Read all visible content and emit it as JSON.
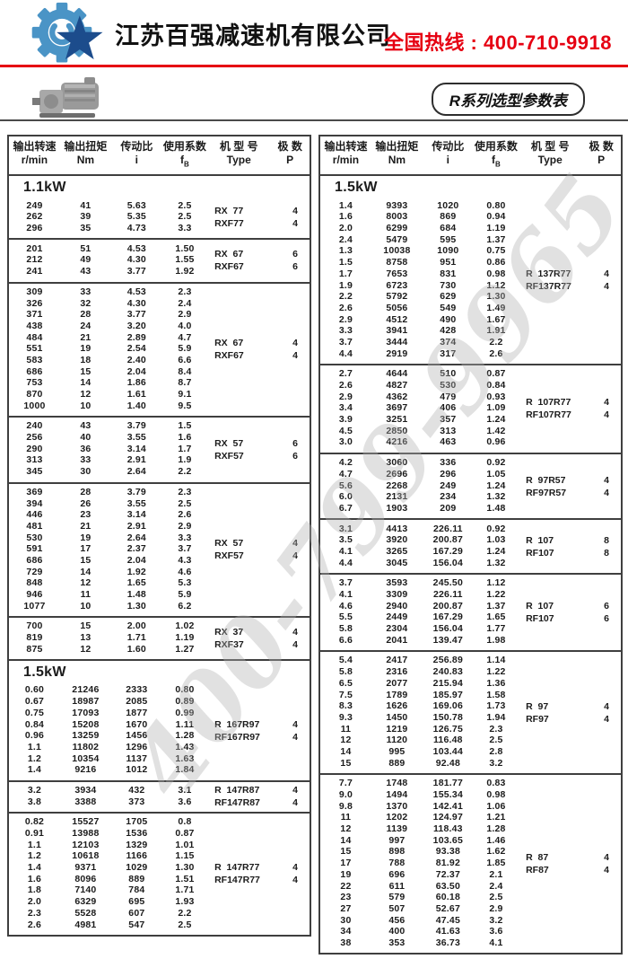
{
  "page": {
    "company_name": "江苏百强减速机有限公司",
    "hotline": "全国热线 : 400-710-9918",
    "series_badge": "R系列选型参数表",
    "watermark": "400-799-9965"
  },
  "colors": {
    "accent_red": "#e60012",
    "logo_light_blue": "#4a94c6",
    "logo_dark_blue": "#1c4c8c",
    "table_border": "#3f3f3f"
  },
  "table_headers": [
    {
      "zh": "输出转速",
      "en": "r/min"
    },
    {
      "zh": "输出扭矩",
      "en": "Nm"
    },
    {
      "zh": "传动比",
      "en": "i"
    },
    {
      "zh": "使用系数",
      "en": "fB",
      "subscript": true
    },
    {
      "zh": "机 型 号",
      "en": "Type"
    },
    {
      "zh": "极 数",
      "en": "P"
    }
  ],
  "columns": [
    {
      "groups": [
        {
          "kw": "1.1kW",
          "rows": [
            [
              "249",
              "41",
              "5.63",
              "2.5"
            ],
            [
              "262",
              "39",
              "5.35",
              "2.5"
            ],
            [
              "296",
              "35",
              "4.73",
              "3.3"
            ]
          ],
          "types": [
            {
              "label": "RX  77",
              "p": "4"
            },
            {
              "label": "RXF77",
              "p": "4"
            }
          ]
        },
        {
          "rows": [
            [
              "201",
              "51",
              "4.53",
              "1.50"
            ],
            [
              "212",
              "49",
              "4.30",
              "1.55"
            ],
            [
              "241",
              "43",
              "3.77",
              "1.92"
            ]
          ],
          "types": [
            {
              "label": "RX  67",
              "p": "6"
            },
            {
              "label": "RXF67",
              "p": "6"
            }
          ]
        },
        {
          "rows": [
            [
              "309",
              "33",
              "4.53",
              "2.3"
            ],
            [
              "326",
              "32",
              "4.30",
              "2.4"
            ],
            [
              "371",
              "28",
              "3.77",
              "2.9"
            ],
            [
              "438",
              "24",
              "3.20",
              "4.0"
            ],
            [
              "484",
              "21",
              "2.89",
              "4.7"
            ],
            [
              "551",
              "19",
              "2.54",
              "5.9"
            ],
            [
              "583",
              "18",
              "2.40",
              "6.6"
            ],
            [
              "686",
              "15",
              "2.04",
              "8.4"
            ],
            [
              "753",
              "14",
              "1.86",
              "8.7"
            ],
            [
              "870",
              "12",
              "1.61",
              "9.1"
            ],
            [
              "1000",
              "10",
              "1.40",
              "9.5"
            ]
          ],
          "types": [
            {
              "label": "RX  67",
              "p": "4"
            },
            {
              "label": "RXF67",
              "p": "4"
            }
          ]
        },
        {
          "rows": [
            [
              "240",
              "43",
              "3.79",
              "1.5"
            ],
            [
              "256",
              "40",
              "3.55",
              "1.6"
            ],
            [
              "290",
              "36",
              "3.14",
              "1.7"
            ],
            [
              "313",
              "33",
              "2.91",
              "1.9"
            ],
            [
              "345",
              "30",
              "2.64",
              "2.2"
            ]
          ],
          "types": [
            {
              "label": "RX  57",
              "p": "6"
            },
            {
              "label": "RXF57",
              "p": "6"
            }
          ]
        },
        {
          "rows": [
            [
              "369",
              "28",
              "3.79",
              "2.3"
            ],
            [
              "394",
              "26",
              "3.55",
              "2.5"
            ],
            [
              "446",
              "23",
              "3.14",
              "2.6"
            ],
            [
              "481",
              "21",
              "2.91",
              "2.9"
            ],
            [
              "530",
              "19",
              "2.64",
              "3.3"
            ],
            [
              "591",
              "17",
              "2.37",
              "3.7"
            ],
            [
              "686",
              "15",
              "2.04",
              "4.3"
            ],
            [
              "729",
              "14",
              "1.92",
              "4.6"
            ],
            [
              "848",
              "12",
              "1.65",
              "5.3"
            ],
            [
              "946",
              "11",
              "1.48",
              "5.9"
            ],
            [
              "1077",
              "10",
              "1.30",
              "6.2"
            ]
          ],
          "types": [
            {
              "label": "RX  57",
              "p": "4"
            },
            {
              "label": "RXF57",
              "p": "4"
            }
          ]
        },
        {
          "rows": [
            [
              "700",
              "15",
              "2.00",
              "1.02"
            ],
            [
              "819",
              "13",
              "1.71",
              "1.19"
            ],
            [
              "875",
              "12",
              "1.60",
              "1.27"
            ]
          ],
          "types": [
            {
              "label": "RX  37",
              "p": "4"
            },
            {
              "label": "RXF37",
              "p": "4"
            }
          ]
        },
        {
          "kw": "1.5kW",
          "rows": [
            [
              "0.60",
              "21246",
              "2333",
              "0.80"
            ],
            [
              "0.67",
              "18987",
              "2085",
              "0.89"
            ],
            [
              "0.75",
              "17093",
              "1877",
              "0.99"
            ],
            [
              "0.84",
              "15208",
              "1670",
              "1.11"
            ],
            [
              "0.96",
              "13259",
              "1456",
              "1.28"
            ],
            [
              "1.1",
              "11802",
              "1296",
              "1.43"
            ],
            [
              "1.2",
              "10354",
              "1137",
              "1.63"
            ],
            [
              "1.4",
              "9216",
              "1012",
              "1.84"
            ]
          ],
          "types": [
            {
              "label": "R  167R97",
              "p": "4"
            },
            {
              "label": "RF167R97",
              "p": "4"
            }
          ]
        },
        {
          "rows": [
            [
              "3.2",
              "3934",
              "432",
              "3.1"
            ],
            [
              "3.8",
              "3388",
              "373",
              "3.6"
            ]
          ],
          "types": [
            {
              "label": "R  147R87",
              "p": "4"
            },
            {
              "label": "RF147R87",
              "p": "4"
            }
          ]
        },
        {
          "rows": [
            [
              "0.82",
              "15527",
              "1705",
              "0.8"
            ],
            [
              "0.91",
              "13988",
              "1536",
              "0.87"
            ],
            [
              "1.1",
              "12103",
              "1329",
              "1.01"
            ],
            [
              "1.2",
              "10618",
              "1166",
              "1.15"
            ],
            [
              "1.4",
              "9371",
              "1029",
              "1.30"
            ],
            [
              "1.6",
              "8096",
              "889",
              "1.51"
            ],
            [
              "1.8",
              "7140",
              "784",
              "1.71"
            ],
            [
              "2.0",
              "6329",
              "695",
              "1.93"
            ],
            [
              "2.3",
              "5528",
              "607",
              "2.2"
            ],
            [
              "2.6",
              "4981",
              "547",
              "2.5"
            ]
          ],
          "types": [
            {
              "label": "R  147R77",
              "p": "4"
            },
            {
              "label": "RF147R77",
              "p": "4"
            }
          ]
        }
      ]
    },
    {
      "groups": [
        {
          "kw": "1.5kW",
          "rows": [
            [
              "1.4",
              "9393",
              "1020",
              "0.80"
            ],
            [
              "1.6",
              "8003",
              "869",
              "0.94"
            ],
            [
              "2.0",
              "6299",
              "684",
              "1.19"
            ],
            [
              "2.4",
              "5479",
              "595",
              "1.37"
            ],
            [
              "1.3",
              "10038",
              "1090",
              "0.75"
            ],
            [
              "1.5",
              "8758",
              "951",
              "0.86"
            ],
            [
              "1.7",
              "7653",
              "831",
              "0.98"
            ],
            [
              "1.9",
              "6723",
              "730",
              "1.12"
            ],
            [
              "2.2",
              "5792",
              "629",
              "1.30"
            ],
            [
              "2.6",
              "5056",
              "549",
              "1.49"
            ],
            [
              "2.9",
              "4512",
              "490",
              "1.67"
            ],
            [
              "3.3",
              "3941",
              "428",
              "1.91"
            ],
            [
              "3.7",
              "3444",
              "374",
              "2.2"
            ],
            [
              "4.4",
              "2919",
              "317",
              "2.6"
            ]
          ],
          "types": [
            {
              "label": "R  137R77",
              "p": "4"
            },
            {
              "label": "RF137R77",
              "p": "4"
            }
          ]
        },
        {
          "rows": [
            [
              "2.7",
              "4644",
              "510",
              "0.87"
            ],
            [
              "2.6",
              "4827",
              "530",
              "0.84"
            ],
            [
              "2.9",
              "4362",
              "479",
              "0.93"
            ],
            [
              "3.4",
              "3697",
              "406",
              "1.09"
            ],
            [
              "3.9",
              "3251",
              "357",
              "1.24"
            ],
            [
              "4.5",
              "2850",
              "313",
              "1.42"
            ],
            [
              "3.0",
              "4216",
              "463",
              "0.96"
            ]
          ],
          "types": [
            {
              "label": "R  107R77",
              "p": "4"
            },
            {
              "label": "RF107R77",
              "p": "4"
            }
          ]
        },
        {
          "rows": [
            [
              "4.2",
              "3060",
              "336",
              "0.92"
            ],
            [
              "4.7",
              "2696",
              "296",
              "1.05"
            ],
            [
              "5.6",
              "2268",
              "249",
              "1.24"
            ],
            [
              "6.0",
              "2131",
              "234",
              "1.32"
            ],
            [
              "6.7",
              "1903",
              "209",
              "1.48"
            ]
          ],
          "types": [
            {
              "label": "R  97R57",
              "p": "4"
            },
            {
              "label": "RF97R57",
              "p": "4"
            }
          ]
        },
        {
          "rows": [
            [
              "3.1",
              "4413",
              "226.11",
              "0.92"
            ],
            [
              "3.5",
              "3920",
              "200.87",
              "1.03"
            ],
            [
              "4.1",
              "3265",
              "167.29",
              "1.24"
            ],
            [
              "4.4",
              "3045",
              "156.04",
              "1.32"
            ]
          ],
          "types": [
            {
              "label": "R  107",
              "p": "8"
            },
            {
              "label": "RF107",
              "p": "8"
            }
          ]
        },
        {
          "rows": [
            [
              "3.7",
              "3593",
              "245.50",
              "1.12"
            ],
            [
              "4.1",
              "3309",
              "226.11",
              "1.22"
            ],
            [
              "4.6",
              "2940",
              "200.87",
              "1.37"
            ],
            [
              "5.5",
              "2449",
              "167.29",
              "1.65"
            ],
            [
              "5.8",
              "2304",
              "156.04",
              "1.77"
            ],
            [
              "6.6",
              "2041",
              "139.47",
              "1.98"
            ]
          ],
          "types": [
            {
              "label": "R  107",
              "p": "6"
            },
            {
              "label": "RF107",
              "p": "6"
            }
          ]
        },
        {
          "rows": [
            [
              "5.4",
              "2417",
              "256.89",
              "1.14"
            ],
            [
              "5.8",
              "2316",
              "240.83",
              "1.22"
            ],
            [
              "6.5",
              "2077",
              "215.94",
              "1.36"
            ],
            [
              "7.5",
              "1789",
              "185.97",
              "1.58"
            ],
            [
              "8.3",
              "1626",
              "169.06",
              "1.73"
            ],
            [
              "9.3",
              "1450",
              "150.78",
              "1.94"
            ],
            [
              "11",
              "1219",
              "126.75",
              "2.3"
            ],
            [
              "12",
              "1120",
              "116.48",
              "2.5"
            ],
            [
              "14",
              "995",
              "103.44",
              "2.8"
            ],
            [
              "15",
              "889",
              "92.48",
              "3.2"
            ]
          ],
          "types": [
            {
              "label": "R  97",
              "p": "4"
            },
            {
              "label": "RF97",
              "p": "4"
            }
          ]
        },
        {
          "rows": [
            [
              "7.7",
              "1748",
              "181.77",
              "0.83"
            ],
            [
              "9.0",
              "1494",
              "155.34",
              "0.98"
            ],
            [
              "9.8",
              "1370",
              "142.41",
              "1.06"
            ],
            [
              "11",
              "1202",
              "124.97",
              "1.21"
            ],
            [
              "12",
              "1139",
              "118.43",
              "1.28"
            ],
            [
              "14",
              "997",
              "103.65",
              "1.46"
            ],
            [
              "15",
              "898",
              "93.38",
              "1.62"
            ],
            [
              "17",
              "788",
              "81.92",
              "1.85"
            ],
            [
              "19",
              "696",
              "72.37",
              "2.1"
            ],
            [
              "22",
              "611",
              "63.50",
              "2.4"
            ],
            [
              "23",
              "579",
              "60.18",
              "2.5"
            ],
            [
              "27",
              "507",
              "52.67",
              "2.9"
            ],
            [
              "30",
              "456",
              "47.45",
              "3.2"
            ],
            [
              "34",
              "400",
              "41.63",
              "3.6"
            ],
            [
              "38",
              "353",
              "36.73",
              "4.1"
            ]
          ],
          "types": [
            {
              "label": "R  87",
              "p": "4"
            },
            {
              "label": "RF87",
              "p": "4"
            }
          ]
        }
      ]
    }
  ]
}
